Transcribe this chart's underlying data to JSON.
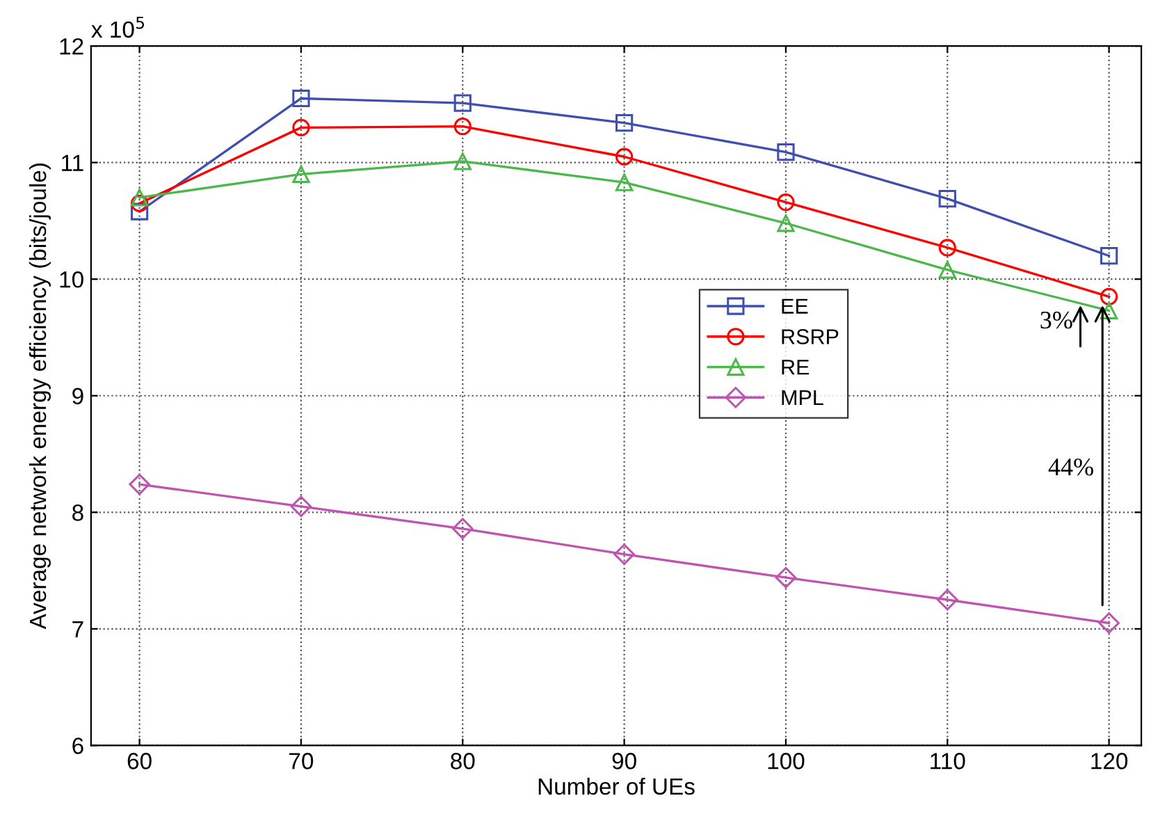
{
  "chart_data": {
    "type": "line",
    "xlabel": "Number of UEs",
    "ylabel": "Average network energy efficiency (bits/joule)",
    "x": [
      60,
      70,
      80,
      90,
      100,
      110,
      120
    ],
    "series": [
      {
        "name": "EE",
        "color": "#3f4fb0",
        "marker": "square",
        "values": [
          10.58,
          11.55,
          11.51,
          11.34,
          11.09,
          10.69,
          10.2
        ]
      },
      {
        "name": "RSRP",
        "color": "#ff0000",
        "marker": "circle",
        "values": [
          10.65,
          11.3,
          11.31,
          11.05,
          10.66,
          10.27,
          9.85
        ]
      },
      {
        "name": "RE",
        "color": "#4cb84c",
        "marker": "triangle",
        "values": [
          10.7,
          10.9,
          11.01,
          10.83,
          10.48,
          10.08,
          9.73
        ]
      },
      {
        "name": "MPL",
        "color": "#bf55b0",
        "marker": "diamond",
        "values": [
          8.24,
          8.05,
          7.86,
          7.64,
          7.44,
          7.25,
          7.05
        ]
      }
    ],
    "xlim": [
      57,
      122
    ],
    "xticks": [
      60,
      70,
      80,
      90,
      100,
      110,
      120
    ],
    "ylim": [
      6,
      12
    ],
    "yticks": [
      6,
      7,
      8,
      9,
      10,
      11,
      12
    ],
    "grid": true,
    "legend": "right",
    "line_style": "solid",
    "annotations": [
      "x 10$^{5}$",
      "3%",
      "44%"
    ]
  }
}
